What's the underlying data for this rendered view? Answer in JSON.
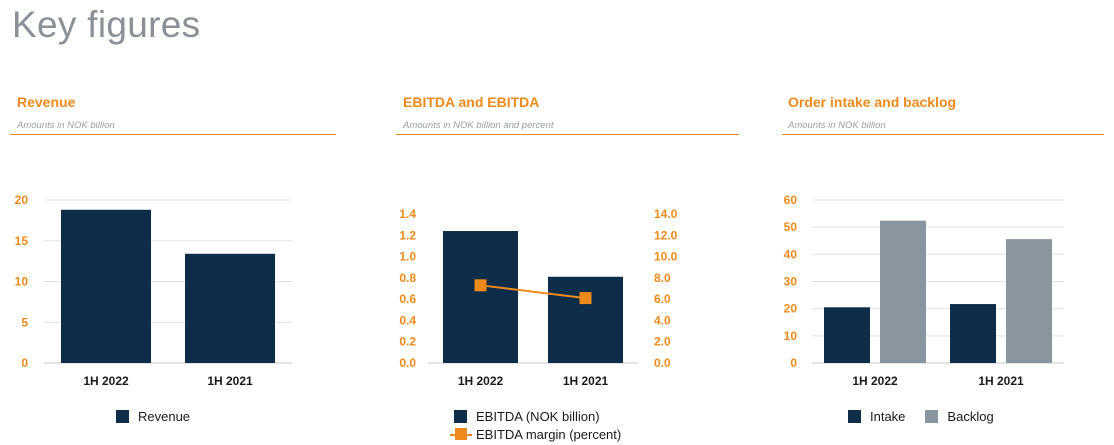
{
  "page": {
    "title": "Key figures"
  },
  "colors": {
    "accent": "#ee8a1c",
    "navy": "#0d2d48",
    "gray": "#8a969f",
    "title_gray": "#8a9096",
    "grid": "#e3e3e3"
  },
  "panels": [
    {
      "title": "Revenue",
      "subtitle": "Amounts in NOK billion"
    },
    {
      "title": "EBITDA and EBITDA",
      "subtitle": "Amounts in NOK billion and percent"
    },
    {
      "title": "Order intake and backlog",
      "subtitle": "Amounts in NOK billion"
    }
  ],
  "chart_data": [
    {
      "type": "bar",
      "title": "Revenue",
      "subtitle": "Amounts in NOK billion",
      "categories": [
        "1H 2022",
        "1H 2021"
      ],
      "series": [
        {
          "name": "Revenue",
          "values": [
            18.8,
            13.4
          ],
          "color": "#0d2d48"
        }
      ],
      "ylim": [
        0,
        20
      ],
      "yticks": [
        0,
        5,
        10,
        15,
        20
      ],
      "ytick_labels": [
        "0",
        "5",
        "10",
        "15",
        "20"
      ],
      "grid": true,
      "legend": "bottom"
    },
    {
      "type": "bar",
      "title": "EBITDA and EBITDA",
      "subtitle": "Amounts in NOK billion and percent",
      "categories": [
        "1H 2022",
        "1H 2021"
      ],
      "series": [
        {
          "name": "EBITDA (NOK billion)",
          "values": [
            1.24,
            0.81
          ],
          "color": "#0d2d48",
          "axis": "left",
          "kind": "bar"
        },
        {
          "name": "EBITDA margin (percent)",
          "values": [
            7.3,
            6.1
          ],
          "color": "#ee8a1c",
          "axis": "right",
          "kind": "line"
        }
      ],
      "ylim": [
        0,
        1.4
      ],
      "yticks": [
        0,
        0.2,
        0.4,
        0.6,
        0.8,
        1.0,
        1.2,
        1.4
      ],
      "ytick_labels": [
        "0.0",
        "0.2",
        "0.4",
        "0.6",
        "0.8",
        "1.0",
        "1.2",
        "1.4"
      ],
      "y2lim": [
        0,
        14
      ],
      "y2ticks": [
        0,
        2,
        4,
        6,
        8,
        10,
        12,
        14
      ],
      "y2tick_labels": [
        "0.0",
        "2.0",
        "4.0",
        "6.0",
        "8.0",
        "10.0",
        "12.0",
        "14.0"
      ],
      "grid": false,
      "legend": "bottom"
    },
    {
      "type": "bar",
      "title": "Order intake and backlog",
      "subtitle": "Amounts in NOK billion",
      "categories": [
        "1H 2022",
        "1H 2021"
      ],
      "series": [
        {
          "name": "Intake",
          "values": [
            20.5,
            21.7
          ],
          "color": "#0d2d48"
        },
        {
          "name": "Backlog",
          "values": [
            52.4,
            45.6
          ],
          "color": "#8a969f"
        }
      ],
      "ylim": [
        0,
        60
      ],
      "yticks": [
        0,
        10,
        20,
        30,
        40,
        50,
        60
      ],
      "ytick_labels": [
        "0",
        "10",
        "20",
        "30",
        "40",
        "50",
        "60"
      ],
      "grid": true,
      "legend": "bottom"
    }
  ]
}
